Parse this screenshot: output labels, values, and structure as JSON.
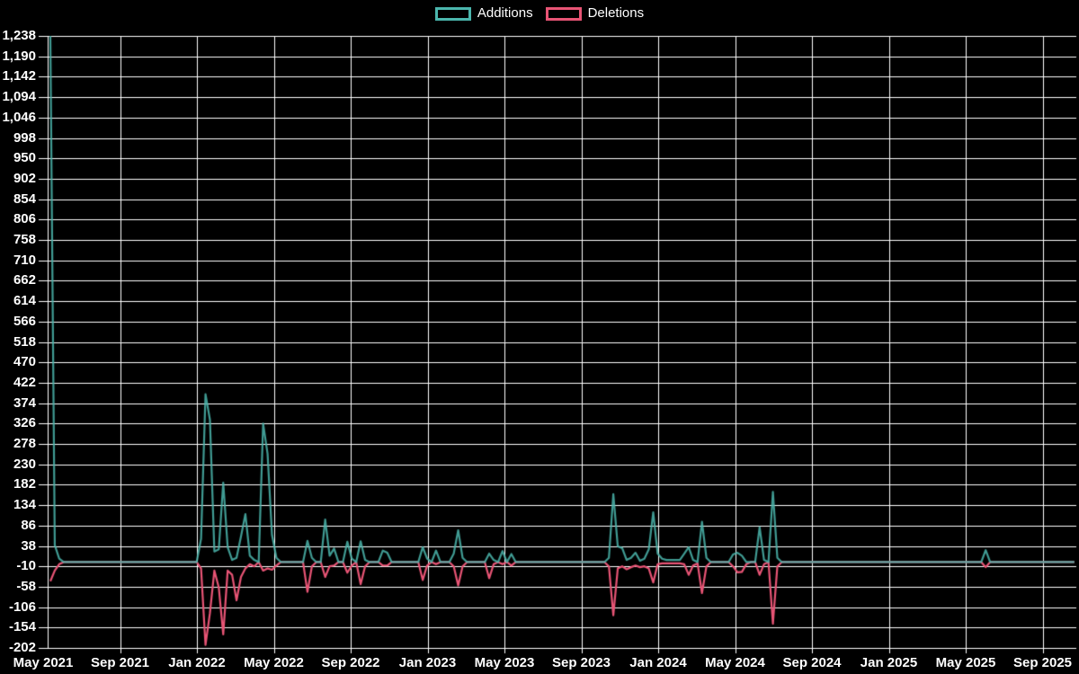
{
  "legend": {
    "items": [
      {
        "label": "Additions",
        "color": "#4bb6ad"
      },
      {
        "label": "Deletions",
        "color": "#e85475"
      }
    ]
  },
  "colors": {
    "background": "#000000",
    "grid": "#ffffff",
    "axis_text": "#ffffff",
    "additions": "#4bb6ad",
    "deletions": "#e85475"
  },
  "chart_data": {
    "type": "line",
    "title": "",
    "xlabel": "",
    "ylabel": "",
    "legend_position": "top-center",
    "grid": true,
    "y_max": 1238,
    "y_min": -202,
    "y_step": 48,
    "y_tick_labels": [
      "1,238",
      "1,190",
      "1,142",
      "1,094",
      "1,046",
      "998",
      "950",
      "902",
      "854",
      "806",
      "758",
      "710",
      "662",
      "614",
      "566",
      "518",
      "470",
      "422",
      "374",
      "326",
      "278",
      "230",
      "182",
      "134",
      "86",
      "38",
      "-10",
      "-58",
      "-106",
      "-154",
      "-202"
    ],
    "x_tick_labels": [
      "May 2021",
      "Sep 2021",
      "Jan 2022",
      "May 2022",
      "Sep 2022",
      "Jan 2023",
      "May 2023",
      "Sep 2023",
      "Jan 2024",
      "May 2024",
      "Sep 2024",
      "Jan 2025",
      "May 2025",
      "Sep 2025"
    ],
    "x_unit": "week",
    "total_weeks": 232,
    "series": [
      {
        "name": "Additions",
        "color": "#4bb6ad",
        "default_value": 0
      },
      {
        "name": "Deletions",
        "color": "#e85475",
        "default_value": 0
      }
    ],
    "weekly_points_format": [
      "week_index",
      "additions",
      "deletions"
    ],
    "weekly_points": [
      [
        0,
        1238,
        -45
      ],
      [
        1,
        40,
        -20
      ],
      [
        2,
        8,
        -5
      ],
      [
        34,
        55,
        -15
      ],
      [
        35,
        395,
        -195
      ],
      [
        36,
        335,
        -120
      ],
      [
        37,
        25,
        -20
      ],
      [
        38,
        30,
        -60
      ],
      [
        39,
        187,
        -170
      ],
      [
        40,
        35,
        -20
      ],
      [
        41,
        5,
        -30
      ],
      [
        42,
        10,
        -90
      ],
      [
        43,
        60,
        -35
      ],
      [
        44,
        113,
        -15
      ],
      [
        45,
        15,
        -5
      ],
      [
        46,
        5,
        -10
      ],
      [
        48,
        326,
        -20
      ],
      [
        49,
        255,
        -15
      ],
      [
        50,
        64,
        -18
      ],
      [
        51,
        10,
        -8
      ],
      [
        58,
        50,
        -70
      ],
      [
        59,
        10,
        -10
      ],
      [
        62,
        100,
        -35
      ],
      [
        63,
        15,
        -10
      ],
      [
        64,
        32,
        -8
      ],
      [
        67,
        48,
        -25
      ],
      [
        68,
        8,
        -8
      ],
      [
        70,
        49,
        -52
      ],
      [
        71,
        5,
        -10
      ],
      [
        75,
        27,
        -8
      ],
      [
        76,
        22,
        -8
      ],
      [
        84,
        35,
        -42
      ],
      [
        85,
        8,
        -8
      ],
      [
        87,
        27,
        -5
      ],
      [
        91,
        20,
        -10
      ],
      [
        92,
        75,
        -55
      ],
      [
        93,
        10,
        -10
      ],
      [
        99,
        20,
        -38
      ],
      [
        100,
        5,
        -5
      ],
      [
        102,
        26,
        -5
      ],
      [
        104,
        19,
        -8
      ],
      [
        126,
        10,
        -10
      ],
      [
        127,
        160,
        -125
      ],
      [
        128,
        37,
        -15
      ],
      [
        129,
        33,
        -10
      ],
      [
        130,
        5,
        -17
      ],
      [
        131,
        10,
        -12
      ],
      [
        132,
        22,
        -8
      ],
      [
        133,
        3,
        -12
      ],
      [
        134,
        8,
        -10
      ],
      [
        135,
        30,
        -15
      ],
      [
        136,
        117,
        -48
      ],
      [
        137,
        20,
        -5
      ],
      [
        138,
        8,
        -3
      ],
      [
        139,
        5,
        -3
      ],
      [
        140,
        5,
        -3
      ],
      [
        141,
        5,
        -3
      ],
      [
        142,
        5,
        -3
      ],
      [
        143,
        20,
        -5
      ],
      [
        144,
        35,
        -30
      ],
      [
        145,
        5,
        -8
      ],
      [
        146,
        0,
        -3
      ],
      [
        147,
        95,
        -73
      ],
      [
        148,
        10,
        -10
      ],
      [
        154,
        18,
        -10
      ],
      [
        155,
        22,
        -24
      ],
      [
        156,
        15,
        -23
      ],
      [
        157,
        0,
        -5
      ],
      [
        160,
        82,
        -30
      ],
      [
        161,
        5,
        -5
      ],
      [
        163,
        165,
        -145
      ],
      [
        164,
        10,
        -10
      ],
      [
        211,
        28,
        -12
      ]
    ]
  }
}
